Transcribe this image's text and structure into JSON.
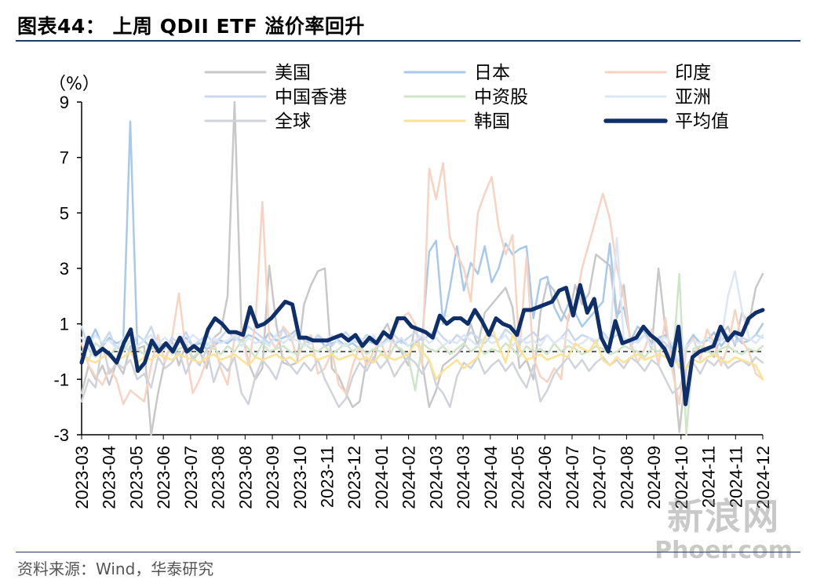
{
  "title": "图表44： 上周 QDII ETF 溢价率回升",
  "source": "资料来源：Wind，华泰研究",
  "watermark": {
    "line1": "新浪网",
    "line2": "Phoer.com"
  },
  "chart_data": {
    "type": "line",
    "unit_label": "（%）",
    "ylim": [
      -3,
      9
    ],
    "yticks": [
      9,
      7,
      5,
      3,
      1,
      -1,
      -3
    ],
    "xtick_labels": [
      "2023-03",
      "2023-04",
      "2023-05",
      "2023-06",
      "2023-07",
      "2023-08",
      "2023-08",
      "2023-09",
      "2023-10",
      "2023-11",
      "2023-12",
      "2024-01",
      "2024-02",
      "2024-03",
      "2024-03",
      "2024-04",
      "2024-05",
      "2024-06",
      "2024-07",
      "2024-07",
      "2024-08",
      "2024-09",
      "2024-10",
      "2024-11",
      "2024-11",
      "2024-12"
    ],
    "reference_line": 0,
    "legend": {
      "columns": 3,
      "placement": "top"
    },
    "series": [
      {
        "name": "美国",
        "color": "#c8c8c8",
        "width": 2.5,
        "values": [
          -1.5,
          -0.5,
          -1.0,
          -0.5,
          -1.2,
          -0.4,
          -0.8,
          0.2,
          0.1,
          0.2,
          -3.0,
          -1.5,
          -0.3,
          0.4,
          -0.5,
          0.3,
          -0.3,
          0.0,
          -0.6,
          0.5,
          0.7,
          2.0,
          9.0,
          0.8,
          -0.4,
          -1.0,
          -0.6,
          3.1,
          1.0,
          -0.4,
          -0.5,
          -0.4,
          1.7,
          2.4,
          2.9,
          3.0,
          -0.6,
          -0.9,
          -1.5,
          -2.0,
          -1.8,
          -0.3,
          -0.4,
          0.6,
          1.0,
          0.3,
          0.0,
          -0.5,
          1.0,
          -0.4,
          -2.0,
          -1.4,
          -0.5,
          -0.3,
          -0.1,
          0.2,
          1.0,
          0.2,
          1.4,
          1.7,
          2.0,
          2.3,
          1.6,
          -0.6,
          -0.3,
          -1.0,
          1.4,
          2.5,
          2.2,
          1.5,
          1.1,
          2.4,
          1.7,
          2.1,
          3.5,
          3.3,
          3.1,
          1.2,
          2.4,
          0.2,
          0.6,
          0.8,
          0.1,
          3.0,
          0.8,
          -0.1,
          -2.9,
          -0.6,
          -0.1,
          0.2,
          0.1,
          -0.2,
          0.6,
          0.9,
          0.2,
          1.4,
          1.0,
          2.3,
          2.8
        ]
      },
      {
        "name": "日本",
        "color": "#a9c9e8",
        "width": 2.5,
        "values": [
          -0.2,
          0.3,
          0.8,
          0.2,
          0.5,
          0.3,
          0.4,
          8.3,
          0.2,
          0.4,
          0.1,
          0.2,
          0.3,
          0.1,
          0.4,
          0.5,
          0.2,
          0.3,
          0.1,
          0.2,
          0.4,
          0.3,
          0.5,
          0.4,
          0.6,
          0.5,
          0.3,
          0.7,
          0.4,
          0.5,
          0.6,
          0.8,
          0.4,
          0.3,
          0.5,
          0.2,
          0.3,
          0.4,
          0.2,
          0.3,
          0.1,
          0.4,
          0.3,
          0.2,
          0.5,
          0.3,
          0.4,
          0.2,
          0.3,
          0.5,
          3.6,
          4.0,
          1.0,
          2.3,
          3.8,
          2.2,
          3.2,
          2.8,
          3.8,
          2.5,
          3.0,
          3.9,
          3.5,
          3.7,
          3.8,
          1.2,
          2.6,
          2.7,
          1.6,
          1.1,
          1.7,
          1.4,
          0.9,
          1.2,
          1.5,
          1.8,
          3.9,
          1.3,
          1.6,
          0.4,
          0.9,
          0.7,
          0.3,
          0.5,
          0.6,
          0.1,
          -0.4,
          0.2,
          0.6,
          0.3,
          0.4,
          0.7,
          0.2,
          0.5,
          0.6,
          0.3,
          0.4,
          0.6,
          1.0
        ]
      },
      {
        "name": "印度",
        "color": "#f8d3c2",
        "width": 2.5,
        "values": [
          0.3,
          -0.5,
          -0.9,
          -1.2,
          -0.6,
          -1.0,
          -1.9,
          -1.4,
          -1.6,
          -1.8,
          -0.5,
          0.6,
          -0.4,
          0.5,
          2.1,
          0.0,
          -1.5,
          -1.0,
          -0.3,
          0.4,
          -0.6,
          -1.2,
          0.5,
          0.8,
          -0.5,
          1.0,
          5.4,
          0.5,
          0.1,
          0.9,
          0.6,
          -0.2,
          0.3,
          0.6,
          -0.8,
          -0.6,
          0.0,
          -1.2,
          -1.5,
          -0.5,
          0.2,
          -0.5,
          0.0,
          0.4,
          -0.3,
          0.8,
          1.2,
          1.4,
          1.0,
          -0.5,
          6.6,
          5.5,
          6.8,
          4.1,
          3.5,
          3.0,
          1.8,
          5.0,
          5.7,
          6.3,
          4.5,
          3.5,
          4.2,
          0.0,
          3.4,
          -0.2,
          -0.9,
          -1.1,
          -0.6,
          -1.0,
          1.3,
          1.6,
          3.0,
          3.9,
          4.8,
          5.7,
          4.8,
          3.0,
          2.0,
          0.3,
          -0.4,
          0.1,
          0.8,
          -0.5,
          1.2,
          -0.7,
          -1.9,
          0.1,
          0.5,
          -0.3,
          0.8,
          0.3,
          -0.5,
          0.2,
          1.5,
          0.4,
          0.0,
          -0.8,
          -1.0
        ]
      },
      {
        "name": "中国香港",
        "color": "#c9d8ef",
        "width": 2.5,
        "values": [
          0.9,
          0.1,
          -0.2,
          0.3,
          0.7,
          0.1,
          0.2,
          0.0,
          0.6,
          0.4,
          0.9,
          0.2,
          0.1,
          0.5,
          0.3,
          0.7,
          0.2,
          0.4,
          0.6,
          0.3,
          0.5,
          0.8,
          0.4,
          0.6,
          0.9,
          0.7,
          0.5,
          0.3,
          0.6,
          0.8,
          0.4,
          0.7,
          0.5,
          0.3,
          0.6,
          0.4,
          0.2,
          0.5,
          0.7,
          0.4,
          0.3,
          0.6,
          0.5,
          0.2,
          0.4,
          0.6,
          0.3,
          0.5,
          0.7,
          0.4,
          0.6,
          0.8,
          0.5,
          0.3,
          0.6,
          0.4,
          0.7,
          0.5,
          0.3,
          0.6,
          0.4,
          0.8,
          0.6,
          0.3,
          0.5,
          0.7,
          0.4,
          0.6,
          0.3,
          0.5,
          0.8,
          0.4,
          0.6,
          0.5,
          0.3,
          0.7,
          0.4,
          0.6,
          0.5,
          0.3,
          0.4,
          0.6,
          0.2,
          0.5,
          0.3,
          0.0,
          -0.6,
          0.2,
          0.4,
          0.3,
          0.5,
          0.2,
          0.4,
          0.6,
          0.3,
          0.5,
          0.4,
          0.6,
          0.5
        ]
      },
      {
        "name": "中资股",
        "color": "#cfe5c8",
        "width": 2.5,
        "values": [
          0.0,
          -0.3,
          0.3,
          0.1,
          -0.2,
          0.2,
          0.0,
          0.4,
          0.1,
          -0.1,
          0.2,
          0.0,
          0.3,
          -0.1,
          0.1,
          0.2,
          -0.2,
          0.0,
          0.3,
          0.1,
          -0.1,
          0.2,
          0.0,
          0.4,
          0.1,
          -0.2,
          0.3,
          0.0,
          0.1,
          0.2,
          0.0,
          -0.1,
          0.3,
          0.1,
          0.0,
          0.2,
          -0.1,
          0.1,
          0.3,
          0.0,
          0.2,
          -0.1,
          0.1,
          0.0,
          -0.3,
          0.2,
          0.1,
          -0.2,
          -1.4,
          0.3,
          0.1,
          0.0,
          0.2,
          -0.1,
          0.1,
          0.3,
          0.0,
          0.2,
          -0.1,
          0.1,
          0.0,
          0.3,
          0.1,
          -0.2,
          0.2,
          0.0,
          0.1,
          -0.1,
          0.3,
          0.0,
          0.2,
          0.1,
          -0.1,
          0.0,
          0.2,
          0.1,
          -0.1,
          0.0,
          0.2,
          0.1,
          0.0,
          -0.2,
          0.1,
          0.0,
          0.2,
          -0.5,
          2.8,
          -3.0,
          0.1,
          0.2,
          0.0,
          -0.1,
          0.1,
          0.2,
          0.0,
          -0.1,
          0.1,
          0.0,
          0.2
        ]
      },
      {
        "name": "亚洲",
        "color": "#dbe7f5",
        "width": 2.5,
        "values": [
          0.5,
          0.2,
          0.6,
          0.3,
          0.4,
          0.1,
          0.5,
          0.3,
          0.2,
          0.4,
          0.6,
          0.3,
          0.5,
          0.2,
          0.4,
          0.3,
          0.6,
          0.4,
          0.2,
          0.5,
          0.3,
          0.4,
          0.6,
          0.2,
          0.5,
          0.3,
          0.4,
          0.2,
          0.6,
          0.3,
          0.5,
          0.4,
          0.2,
          0.3,
          0.5,
          0.4,
          0.6,
          0.3,
          0.2,
          0.4,
          0.5,
          0.3,
          0.6,
          0.2,
          0.4,
          0.3,
          0.5,
          0.2,
          0.4,
          0.6,
          0.3,
          0.5,
          0.2,
          0.4,
          0.3,
          0.6,
          0.4,
          0.2,
          0.5,
          0.3,
          0.4,
          0.6,
          0.2,
          0.5,
          0.3,
          0.4,
          0.2,
          0.6,
          0.3,
          0.5,
          0.4,
          0.2,
          0.3,
          0.5,
          0.4,
          0.6,
          0.3,
          4.1,
          0.4,
          0.5,
          0.3,
          0.6,
          0.2,
          0.4,
          0.5,
          0.3,
          -0.5,
          0.2,
          0.4,
          0.3,
          0.5,
          0.2,
          0.4,
          2.0,
          2.9,
          1.5,
          0.5,
          0.3,
          0.6
        ]
      },
      {
        "name": "全球",
        "color": "#d0d3dc",
        "width": 2.5,
        "values": [
          -1.8,
          -1.0,
          -1.3,
          0.3,
          -0.8,
          -0.4,
          -0.6,
          -0.3,
          -1.0,
          -0.8,
          -1.3,
          -0.2,
          -0.6,
          -0.4,
          0.0,
          -0.8,
          -0.2,
          -0.5,
          0.1,
          -1.1,
          -0.4,
          -0.7,
          -0.2,
          -1.5,
          -1.9,
          -0.9,
          -0.3,
          -0.6,
          -1.0,
          -0.2,
          -0.5,
          -0.8,
          -0.4,
          -0.7,
          -0.3,
          -1.0,
          -1.5,
          -2.0,
          -1.7,
          -0.9,
          -0.4,
          -0.7,
          -0.2,
          -0.6,
          -0.3,
          -0.9,
          -0.5,
          -0.2,
          -0.4,
          -0.8,
          -0.3,
          -1.2,
          -1.5,
          -2.0,
          -0.9,
          -0.4,
          -0.6,
          -0.2,
          -0.8,
          -0.5,
          -0.3,
          -0.7,
          -0.4,
          -0.9,
          -1.3,
          -0.5,
          -1.8,
          -1.4,
          -0.8,
          -0.5,
          -0.2,
          -0.6,
          -0.3,
          -0.7,
          -0.4,
          -0.2,
          -0.5,
          -0.3,
          -0.6,
          -0.2,
          -0.4,
          -0.7,
          -0.3,
          -0.5,
          -1.0,
          -1.5,
          -1.3,
          -0.6,
          -0.4,
          -0.8,
          -0.3,
          -0.5,
          -0.2,
          -0.6,
          -0.4,
          -0.3,
          -0.5,
          -0.2,
          -0.4
        ]
      },
      {
        "name": "韩国",
        "color": "#fbe294",
        "width": 2.5,
        "values": [
          -0.2,
          -0.3,
          -0.4,
          -0.2,
          -0.1,
          -0.3,
          -0.2,
          0.0,
          -0.4,
          -0.2,
          -0.3,
          -0.1,
          -0.2,
          -0.3,
          -0.1,
          -0.2,
          -0.3,
          -0.4,
          -0.2,
          -0.1,
          -0.3,
          -0.2,
          -0.1,
          -0.3,
          -0.5,
          -0.2,
          -0.3,
          -0.2,
          -0.1,
          -0.3,
          -0.2,
          -0.4,
          -0.2,
          -0.1,
          -0.3,
          -0.2,
          -0.1,
          -0.3,
          -0.2,
          -0.1,
          -0.3,
          -0.2,
          -0.4,
          -0.1,
          -0.2,
          -0.3,
          -0.2,
          -0.1,
          0.3,
          0.0,
          -0.3,
          -1.0,
          -0.7,
          -0.5,
          -0.3,
          -0.6,
          -0.4,
          -0.2,
          0.5,
          0.9,
          0.2,
          -0.4,
          0.6,
          0.1,
          -0.3,
          -0.2,
          -0.1,
          -0.3,
          -0.2,
          -0.1,
          -0.2,
          0.3,
          0.1,
          0.0,
          0.4,
          -0.3,
          -0.5,
          -0.2,
          -0.4,
          -0.2,
          -0.1,
          -0.3,
          -0.2,
          -0.1,
          -0.2,
          -0.3,
          -0.5,
          -0.6,
          -0.3,
          -0.4,
          -0.2,
          -0.1,
          -0.3,
          -0.4,
          -0.2,
          -0.3,
          -0.4,
          -0.5,
          -1.0
        ]
      },
      {
        "name": "平均值",
        "color": "#0e2f6a",
        "width": 5,
        "values": [
          -0.4,
          0.5,
          -0.1,
          0.1,
          -0.1,
          -0.4,
          0.3,
          0.8,
          -0.7,
          -0.4,
          0.4,
          0.0,
          0.3,
          0.0,
          0.5,
          0.0,
          0.2,
          0.0,
          0.8,
          1.2,
          1.0,
          0.7,
          0.7,
          0.6,
          1.6,
          0.9,
          1.0,
          1.2,
          1.5,
          1.8,
          1.7,
          0.5,
          0.5,
          0.4,
          0.4,
          0.4,
          0.5,
          0.6,
          0.4,
          0.6,
          0.2,
          0.5,
          0.3,
          0.7,
          0.5,
          1.2,
          1.2,
          0.9,
          0.8,
          0.7,
          0.5,
          1.3,
          1.0,
          1.2,
          1.2,
          1.0,
          1.5,
          1.1,
          0.6,
          1.2,
          1.0,
          0.9,
          0.6,
          1.5,
          1.5,
          1.6,
          1.7,
          1.8,
          2.2,
          2.3,
          1.3,
          2.4,
          1.4,
          1.9,
          0.5,
          0.0,
          1.1,
          0.3,
          0.4,
          0.5,
          0.9,
          0.6,
          0.4,
          0.1,
          -0.5,
          0.9,
          -1.9,
          -0.2,
          0.0,
          0.1,
          0.2,
          0.9,
          0.4,
          0.7,
          0.6,
          1.2,
          1.4,
          1.5
        ]
      }
    ]
  }
}
